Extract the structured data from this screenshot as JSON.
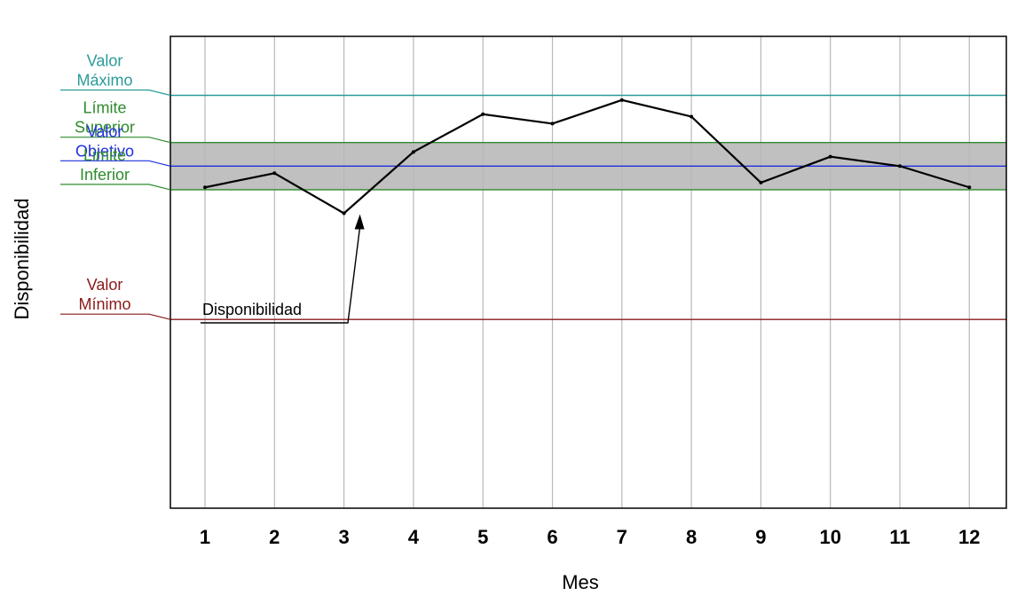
{
  "chart_data": {
    "type": "line",
    "xlabel": "Mes",
    "ylabel": "Disponibilidad",
    "categories": [
      "1",
      "2",
      "3",
      "4",
      "5",
      "6",
      "7",
      "8",
      "9",
      "10",
      "11",
      "12"
    ],
    "series": [
      {
        "name": "Disponibilidad",
        "values": [
          93.6,
          94.2,
          92.5,
          95.1,
          96.7,
          96.3,
          97.3,
          96.6,
          93.8,
          94.9,
          94.5,
          93.6
        ],
        "color": "#000000"
      }
    ],
    "ylim": [
      80,
      100
    ],
    "reference_lines": [
      {
        "key": "maximo",
        "label_line1": "Valor",
        "label_line2": "Máximo",
        "value": 97.5,
        "color": "#2a9a9a"
      },
      {
        "key": "superior",
        "label_line1": "Límite",
        "label_line2": "Superior",
        "value": 95.5,
        "color": "#2e8b2e"
      },
      {
        "key": "objetivo",
        "label_line1": "Valor",
        "label_line2": "Objetivo",
        "value": 94.5,
        "color": "#1f2fe0"
      },
      {
        "key": "inferior",
        "label_line1": "Limite",
        "label_line2": "Inferior",
        "value": 93.5,
        "color": "#2e8b2e"
      },
      {
        "key": "minimo",
        "label_line1": "Valor",
        "label_line2": "Mínimo",
        "value": 88.0,
        "color": "#8b1a1a"
      }
    ],
    "band": {
      "from": 93.5,
      "to": 95.5,
      "color": "#c0c0c0"
    },
    "annotation": {
      "text": "Disponibilidad",
      "target_index": 2
    },
    "grid": true,
    "legend": "none"
  }
}
